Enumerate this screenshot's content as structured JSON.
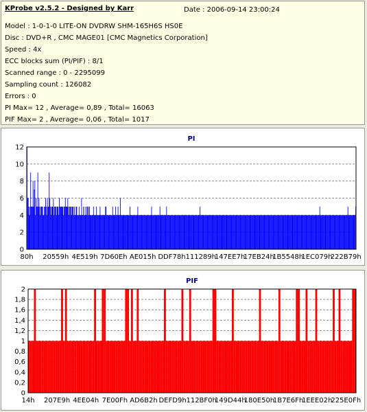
{
  "header": {
    "app_title": "KProbe v2.5.2 - Designed by Karr",
    "date": "Date : 2006-09-14 23:00:24",
    "lines": [
      "Model : 1-0-1-0 LITE-ON DVDRW SHM-165H6S HS0E",
      "Disc : DVD+R , CMC MAGE01 [CMC Magnetics Corporation]",
      "Speed : 4x",
      "ECC blocks sum (PI/PIF) : 8/1",
      "Scanned range : 0 - 2295099",
      "Sampling count : 126082",
      "Errors : 0",
      "PI Max= 12 , Average= 0,89 , Total= 16063",
      "PIF Max= 2 , Average= 0,06 , Total= 1017"
    ]
  },
  "chart_data": [
    {
      "type": "bar",
      "title": "PI",
      "ylim": [
        0,
        12
      ],
      "yticks": [
        "0",
        "2",
        "4",
        "6",
        "8",
        "10",
        "12"
      ],
      "x_tick_labels": [
        "80h",
        "20559h",
        "4E519h",
        "7D60Eh",
        "AE015h",
        "DDF78h",
        "111289h",
        "147EE7h",
        "17EB24h",
        "1B5548h",
        "1EC079h",
        "222B79h"
      ],
      "grid": "dashed horizontal",
      "color": "#0000ff",
      "values": [
        12,
        6,
        6,
        5,
        4,
        5,
        9,
        5,
        5,
        5,
        8,
        5,
        7,
        8,
        4,
        6,
        5,
        5,
        9,
        5,
        6,
        5,
        4,
        5,
        5,
        5,
        5,
        4,
        4,
        5,
        5,
        6,
        5,
        4,
        6,
        5,
        5,
        9,
        6,
        5,
        4,
        5,
        5,
        5,
        6,
        4,
        5,
        5,
        5,
        4,
        5,
        5,
        5,
        4,
        6,
        5,
        5,
        5,
        5,
        5,
        5,
        4,
        5,
        5,
        6,
        5,
        5,
        5,
        6,
        5,
        4,
        5,
        5,
        5,
        4,
        5,
        5,
        5,
        4,
        5,
        4,
        4,
        5,
        5,
        4,
        4,
        4,
        5,
        4,
        4,
        4,
        6,
        4,
        4,
        5,
        4,
        4,
        5,
        4,
        4,
        5,
        5,
        4,
        5,
        5,
        4,
        4,
        4,
        4,
        4,
        4,
        5,
        4,
        4,
        4,
        4,
        5,
        4,
        4,
        4,
        4,
        4,
        5,
        4,
        4,
        4,
        4,
        4,
        4,
        4,
        4,
        5,
        5,
        4,
        4,
        4,
        4,
        4,
        4,
        4,
        4,
        4,
        4,
        5,
        4,
        4,
        4,
        4,
        5,
        4,
        4,
        4,
        5,
        4,
        4,
        4,
        6,
        4,
        4,
        4,
        4,
        4,
        4,
        4,
        4,
        4,
        4,
        4,
        4,
        4,
        4,
        4,
        5,
        4,
        4,
        4,
        4,
        4,
        4,
        4,
        4,
        4,
        4,
        4,
        4,
        5,
        4,
        4,
        4,
        4,
        4,
        4,
        4,
        4,
        4,
        4,
        4,
        4,
        4,
        4,
        4,
        4,
        4,
        4,
        4,
        4,
        4,
        4,
        5,
        4,
        4,
        4,
        4,
        4,
        4,
        4,
        4,
        4,
        4,
        4,
        4,
        4,
        5,
        4,
        4,
        4,
        4,
        4,
        4,
        4,
        4,
        4,
        4,
        5,
        4,
        4,
        4,
        4,
        4,
        4,
        4,
        4,
        4,
        4,
        4,
        4,
        4,
        4,
        4,
        4,
        4,
        4,
        4,
        4,
        4,
        4,
        4,
        4,
        4,
        4,
        4,
        4,
        4,
        4,
        4,
        4,
        4,
        4,
        4,
        4,
        4,
        4,
        4,
        4,
        4,
        4,
        4,
        4,
        4,
        4,
        4,
        4,
        4,
        4,
        4,
        4,
        4,
        4,
        4,
        5,
        4,
        4,
        4,
        4,
        4,
        4,
        4,
        4,
        4,
        4,
        4,
        4,
        4,
        4,
        4,
        4,
        4,
        4,
        4,
        4,
        4,
        4,
        4,
        4,
        4,
        4,
        4,
        4,
        4,
        4,
        4,
        4,
        4,
        4,
        4,
        4,
        4,
        4,
        4,
        4,
        4,
        4,
        4,
        4,
        4,
        4,
        4,
        4,
        4,
        4,
        4,
        4,
        4,
        4,
        4,
        4,
        4,
        4,
        4,
        4,
        4,
        4,
        4,
        4,
        4,
        4,
        4,
        4,
        4,
        4,
        4,
        4,
        4,
        4,
        4,
        4,
        4,
        4,
        4,
        4,
        4,
        4,
        4,
        4,
        4,
        4,
        4,
        4,
        4,
        4,
        4,
        4,
        4,
        4,
        4,
        4,
        4,
        4,
        4,
        4,
        4,
        4,
        4,
        4,
        4,
        4,
        4,
        4,
        4,
        4,
        4,
        4,
        4,
        4,
        4,
        4,
        4,
        4,
        4,
        4,
        4,
        4,
        4,
        4,
        4,
        4,
        4,
        4,
        4,
        4,
        4,
        4,
        4,
        4,
        4,
        4,
        4,
        4,
        4,
        4,
        4,
        4,
        4,
        4,
        4,
        4,
        4,
        4,
        4,
        4,
        4,
        4,
        4,
        4,
        4,
        4,
        4,
        4,
        4,
        4,
        4,
        4,
        4,
        4,
        4,
        4,
        4,
        4,
        4,
        4,
        4,
        4,
        4,
        4,
        4,
        4,
        4,
        4,
        4,
        4,
        4,
        4,
        4,
        4,
        4,
        4,
        4,
        4,
        4,
        4,
        4,
        4,
        4,
        4,
        4,
        4,
        4,
        4,
        4,
        5,
        4,
        4,
        4,
        4,
        4,
        4,
        4,
        4,
        4,
        4,
        4,
        4,
        4,
        4,
        4,
        4,
        4,
        4,
        4,
        4,
        4,
        4,
        4,
        4,
        4,
        4,
        4,
        4,
        4,
        4,
        4,
        4,
        4,
        4,
        4,
        4,
        4,
        4,
        4,
        4,
        4,
        4,
        4,
        4,
        4,
        4,
        5,
        4,
        4,
        4,
        4,
        4,
        4,
        4,
        4,
        4,
        4,
        4,
        4,
        5
      ]
    },
    {
      "type": "bar",
      "title": "PIF",
      "ylim": [
        0,
        2
      ],
      "yticks": [
        "0",
        "0,2",
        "0,4",
        "0,6",
        "0,8",
        "1",
        "1,2",
        "1,4",
        "1,6",
        "1,8",
        "2"
      ],
      "x_tick_labels": [
        "14h",
        "207E9h",
        "4EE04h",
        "7E00Fh",
        "AD6B2h",
        "DEFD9h",
        "112BF0h",
        "149D44h",
        "180E50h",
        "1B7E6Fh",
        "1EEE02h",
        "225E0Fh"
      ],
      "grid": "dashed horizontal",
      "color": "#ff0000",
      "values": [
        1,
        1,
        1,
        2,
        1,
        1,
        1,
        1,
        1,
        1,
        1,
        1,
        1,
        1,
        1,
        1,
        1,
        2,
        1,
        2,
        1,
        1,
        1,
        1,
        1,
        1,
        1,
        1,
        1,
        1,
        1,
        1,
        1,
        1,
        2,
        1,
        1,
        1,
        2,
        2,
        1,
        1,
        1,
        1,
        1,
        1,
        1,
        1,
        1,
        1,
        2,
        2,
        1,
        2,
        1,
        1,
        2,
        1,
        1,
        1,
        1,
        1,
        1,
        1,
        1,
        1,
        1,
        1,
        1,
        1,
        2,
        1,
        1,
        1,
        1,
        1,
        1,
        1,
        1,
        2,
        1,
        1,
        1,
        2,
        1,
        1,
        1,
        1,
        1,
        1,
        1,
        1,
        1,
        1,
        1,
        2,
        2,
        1,
        1,
        1,
        1,
        1,
        1,
        1,
        1,
        2,
        1,
        1,
        1,
        1,
        1,
        1,
        1,
        1,
        1,
        1,
        1,
        1,
        1,
        2,
        1,
        1,
        1,
        1,
        1,
        1,
        1,
        1,
        1,
        2,
        1,
        1,
        1,
        1,
        1,
        1,
        1,
        1,
        2,
        2,
        1,
        1,
        1,
        2,
        1,
        1,
        1,
        1,
        2,
        1,
        1,
        1,
        1,
        1,
        1,
        1,
        1,
        2,
        1,
        1,
        2,
        1,
        1,
        1,
        1,
        1,
        1,
        2,
        2
      ]
    }
  ]
}
